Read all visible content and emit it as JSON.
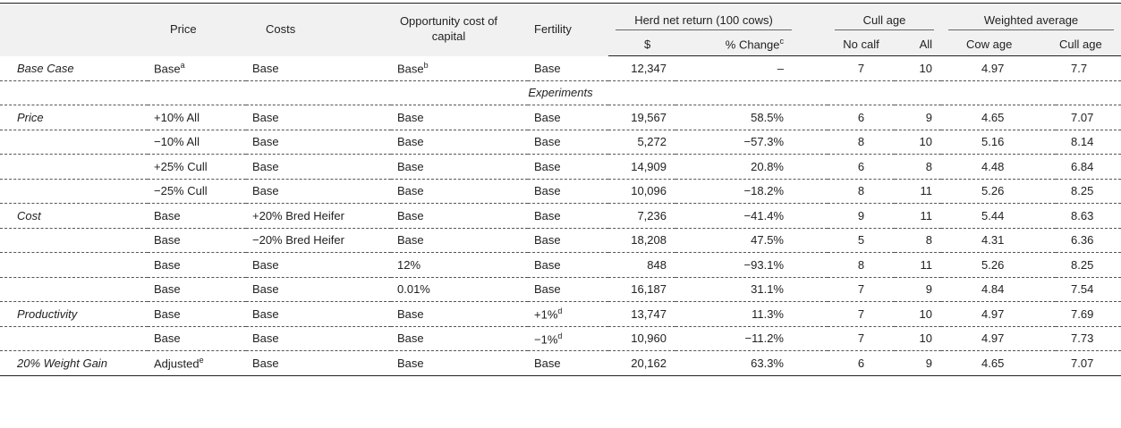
{
  "table": {
    "header": {
      "price": "Price",
      "costs": "Costs",
      "opportunity": "Opportunity cost of capital",
      "fertility": "Fertility",
      "herd": "Herd net return (100 cows)",
      "dollar": "$",
      "change": "% Change",
      "change_note": "c",
      "cull": "Cull age",
      "no_calf": "No calf",
      "all": "All",
      "weighted": "Weighted average",
      "cow_age": "Cow age",
      "cull_age": "Cull age"
    },
    "body": [
      {
        "group": "Base Case",
        "rows": [
          [
            {
              "text": "Base",
              "note": "a"
            },
            "Base",
            {
              "text": "Base",
              "note": "b"
            },
            "Base",
            "12,347",
            "–",
            "7",
            "10",
            "4.97",
            "7.7"
          ]
        ]
      },
      {
        "heading": "Experiments"
      },
      {
        "group": "Price",
        "rows": [
          [
            "+10% All",
            "Base",
            "Base",
            "Base",
            "19,567",
            "58.5%",
            "6",
            "9",
            "4.65",
            "7.07"
          ],
          [
            "−10% All",
            "Base",
            "Base",
            "Base",
            "5,272",
            "−57.3%",
            "8",
            "10",
            "5.16",
            "8.14"
          ],
          [
            "+25% Cull",
            "Base",
            "Base",
            "Base",
            "14,909",
            "20.8%",
            "6",
            "8",
            "4.48",
            "6.84"
          ],
          [
            "−25% Cull",
            "Base",
            "Base",
            "Base",
            "10,096",
            "−18.2%",
            "8",
            "11",
            "5.26",
            "8.25"
          ]
        ]
      },
      {
        "group": "Cost",
        "rows": [
          [
            "Base",
            "+20% Bred Heifer",
            "Base",
            "Base",
            "7,236",
            "−41.4%",
            "9",
            "11",
            "5.44",
            "8.63"
          ],
          [
            "Base",
            "−20% Bred Heifer",
            "Base",
            "Base",
            "18,208",
            "47.5%",
            "5",
            "8",
            "4.31",
            "6.36"
          ],
          [
            "Base",
            "Base",
            "12%",
            "Base",
            "848",
            "−93.1%",
            "8",
            "11",
            "5.26",
            "8.25"
          ],
          [
            "Base",
            "Base",
            "0.01%",
            "Base",
            "16,187",
            "31.1%",
            "7",
            "9",
            "4.84",
            "7.54"
          ]
        ]
      },
      {
        "group": "Productivity",
        "rows": [
          [
            "Base",
            "Base",
            "Base",
            {
              "text": "+1%",
              "note": "d"
            },
            "13,747",
            "11.3%",
            "7",
            "10",
            "4.97",
            "7.69"
          ],
          [
            "Base",
            "Base",
            "Base",
            {
              "text": "−1%",
              "note": "d"
            },
            "10,960",
            "−11.2%",
            "7",
            "10",
            "4.97",
            "7.73"
          ]
        ]
      },
      {
        "group": "20% Weight Gain",
        "rows": [
          [
            {
              "text": "Adjusted",
              "note": "e"
            },
            "Base",
            "Base",
            "Base",
            "20,162",
            "63.3%",
            "6",
            "9",
            "4.65",
            "7.07"
          ]
        ]
      }
    ]
  }
}
